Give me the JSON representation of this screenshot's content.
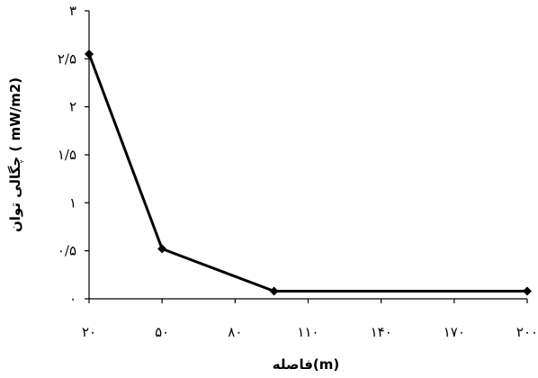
{
  "chart_data": {
    "type": "line",
    "title": "",
    "xlabel": "فاصله(m)",
    "ylabel": "چگالی توان ( mW/m2)",
    "x_ticks": [
      "۲۰",
      "۵۰",
      "۸۰",
      "۱۱۰",
      "۱۴۰",
      "۱۷۰",
      "۲۰۰"
    ],
    "y_ticks": [
      "۰",
      "۰/۵",
      "۱",
      "۱/۵",
      "۲",
      "۲/۵",
      "۳"
    ],
    "xlim": [
      20,
      200
    ],
    "ylim": [
      0,
      3
    ],
    "grid": false,
    "legend": "none",
    "series": [
      {
        "x": [
          20,
          50,
          96,
          200
        ],
        "y": [
          2.55,
          0.52,
          0.08,
          0.08
        ],
        "color": "#000000",
        "marker": "diamond"
      }
    ]
  }
}
